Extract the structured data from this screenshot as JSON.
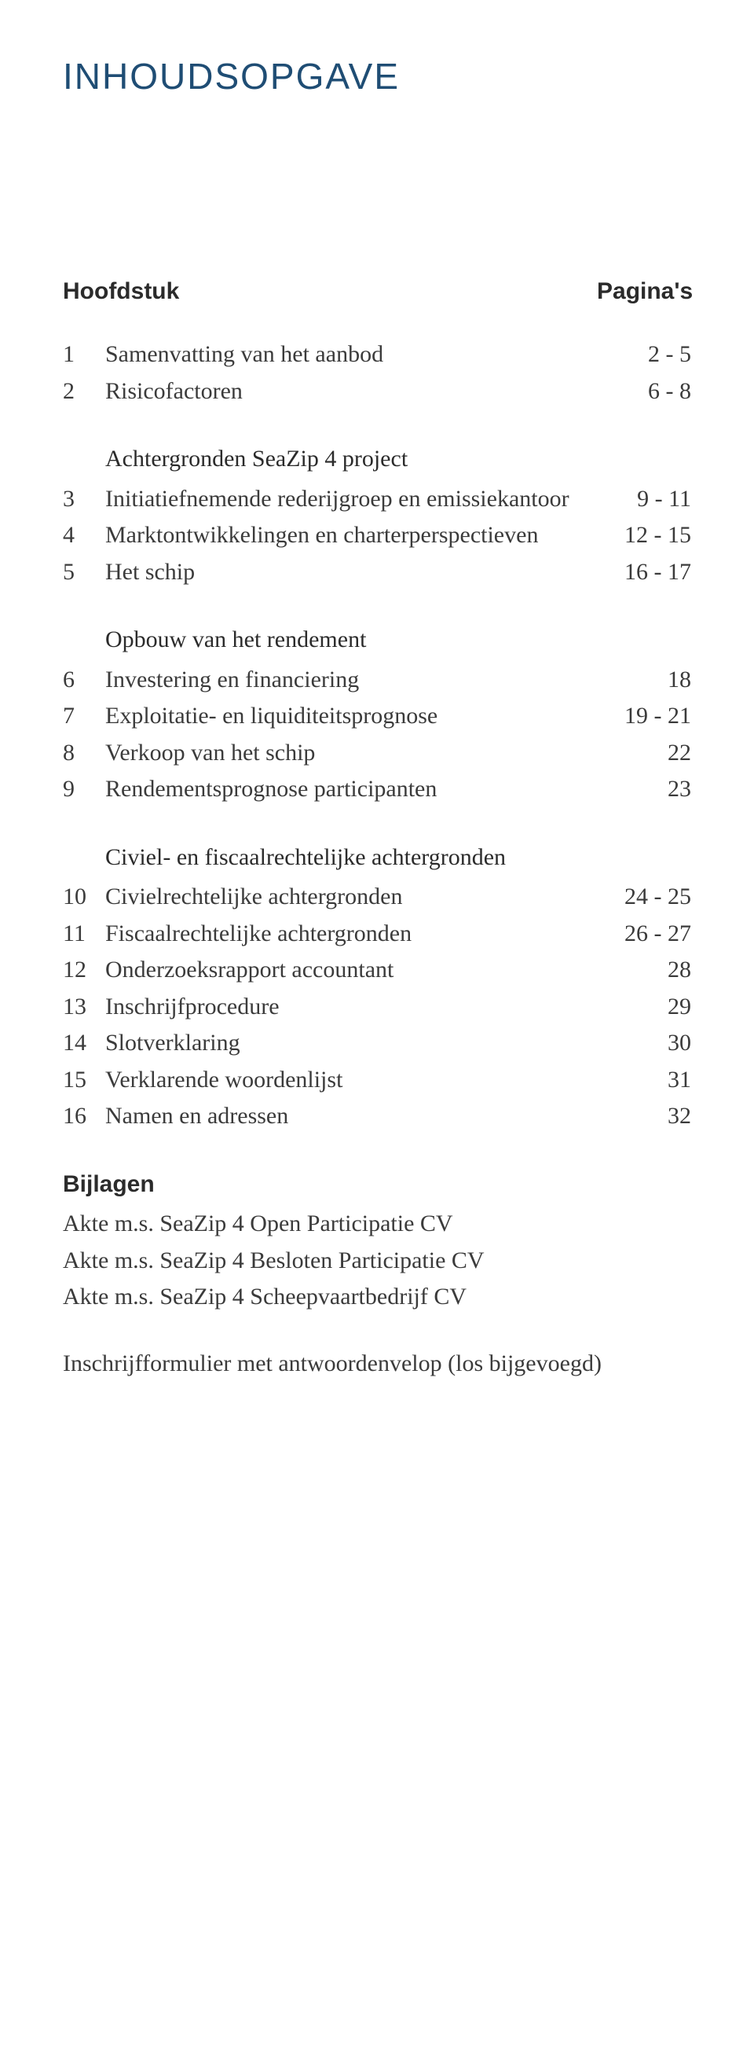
{
  "title": "INHOUDSOPGAVE",
  "header": {
    "col_title": "Hoofdstuk",
    "col_pages": "Pagina's"
  },
  "sections": [
    {
      "heading": null,
      "entries": [
        {
          "num": "1",
          "label": "Samenvatting van het aanbod",
          "pages": "2 - 5"
        },
        {
          "num": "2",
          "label": "Risicofactoren",
          "pages": "6 - 8"
        }
      ]
    },
    {
      "heading": "Achtergronden SeaZip 4 project",
      "entries": [
        {
          "num": "3",
          "label": "Initiatiefnemende rederijgroep en emissiekantoor",
          "pages": "9 - 11"
        },
        {
          "num": "4",
          "label": "Marktontwikkelingen en charterperspectieven",
          "pages": "12 - 15"
        },
        {
          "num": "5",
          "label": "Het schip",
          "pages": "16 - 17"
        }
      ]
    },
    {
      "heading": "Opbouw van het rendement",
      "entries": [
        {
          "num": "6",
          "label": "Investering en financiering",
          "pages": "18"
        },
        {
          "num": "7",
          "label": "Exploitatie- en liquiditeitsprognose",
          "pages": "19 - 21"
        },
        {
          "num": "8",
          "label": "Verkoop van het schip",
          "pages": "22"
        },
        {
          "num": "9",
          "label": "Rendementsprognose participanten",
          "pages": "23"
        }
      ]
    },
    {
      "heading": "Civiel- en fiscaalrechtelijke achtergronden",
      "entries": [
        {
          "num": "10",
          "label": "Civielrechtelijke achtergronden",
          "pages": "24 - 25"
        },
        {
          "num": "11",
          "label": "Fiscaalrechtelijke achtergronden",
          "pages": "26 - 27"
        },
        {
          "num": "12",
          "label": "Onderzoeksrapport accountant",
          "pages": "28"
        },
        {
          "num": "13",
          "label": "Inschrijfprocedure",
          "pages": "29"
        },
        {
          "num": "14",
          "label": "Slotverklaring",
          "pages": "30"
        },
        {
          "num": "15",
          "label": "Verklarende woordenlijst",
          "pages": "31"
        },
        {
          "num": "16",
          "label": "Namen en adressen",
          "pages": "32"
        }
      ]
    }
  ],
  "appendix": {
    "heading": "Bijlagen",
    "lines": [
      "Akte m.s. SeaZip 4 Open Participatie CV",
      "Akte m.s. SeaZip 4 Besloten Participatie CV",
      "Akte m.s. SeaZip 4 Scheepvaartbedrijf CV"
    ]
  },
  "footer": "Inschrijfformulier met antwoordenvelop (los bijgevoegd)"
}
